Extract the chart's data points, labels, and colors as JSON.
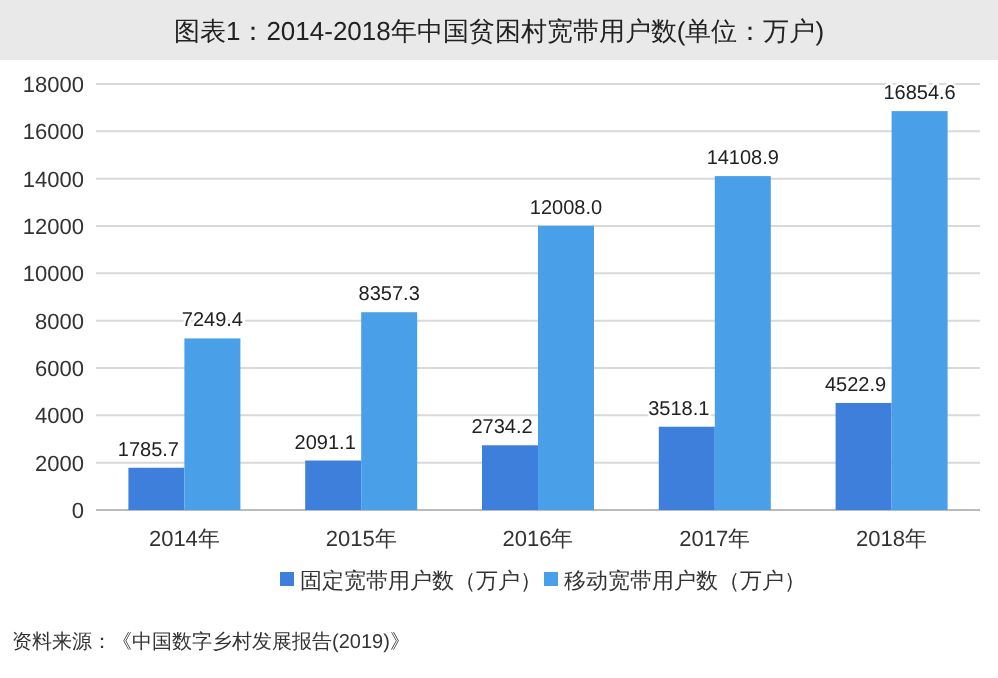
{
  "chart_data": {
    "type": "bar",
    "title": "图表1：2014-2018年中国贫困村宽带用户数(单位：万户)",
    "categories": [
      "2014年",
      "2015年",
      "2016年",
      "2017年",
      "2018年"
    ],
    "series": [
      {
        "name": "固定宽带用户数（万户）",
        "color": "#3f7fdc",
        "values": [
          1785.7,
          2091.1,
          2734.2,
          3518.1,
          4522.9
        ],
        "value_labels": [
          "1785.7",
          "2091.1",
          "2734.2",
          "3518.1",
          "4522.9"
        ]
      },
      {
        "name": "移动宽带用户数（万户）",
        "color": "#4aa0e8",
        "values": [
          7249.4,
          8357.3,
          12008,
          14108.9,
          16854.6
        ],
        "value_labels": [
          "7249.4",
          "8357.3",
          "12008.0",
          "14108.9",
          "16854.6"
        ]
      }
    ],
    "ylim": [
      0,
      18000
    ],
    "yticks": [
      0,
      2000,
      4000,
      6000,
      8000,
      10000,
      12000,
      14000,
      16000,
      18000
    ],
    "grid": "y",
    "legend": "bottom",
    "annotations": [
      "资料来源：《中国数字乡村发展报告(2019)》"
    ]
  }
}
